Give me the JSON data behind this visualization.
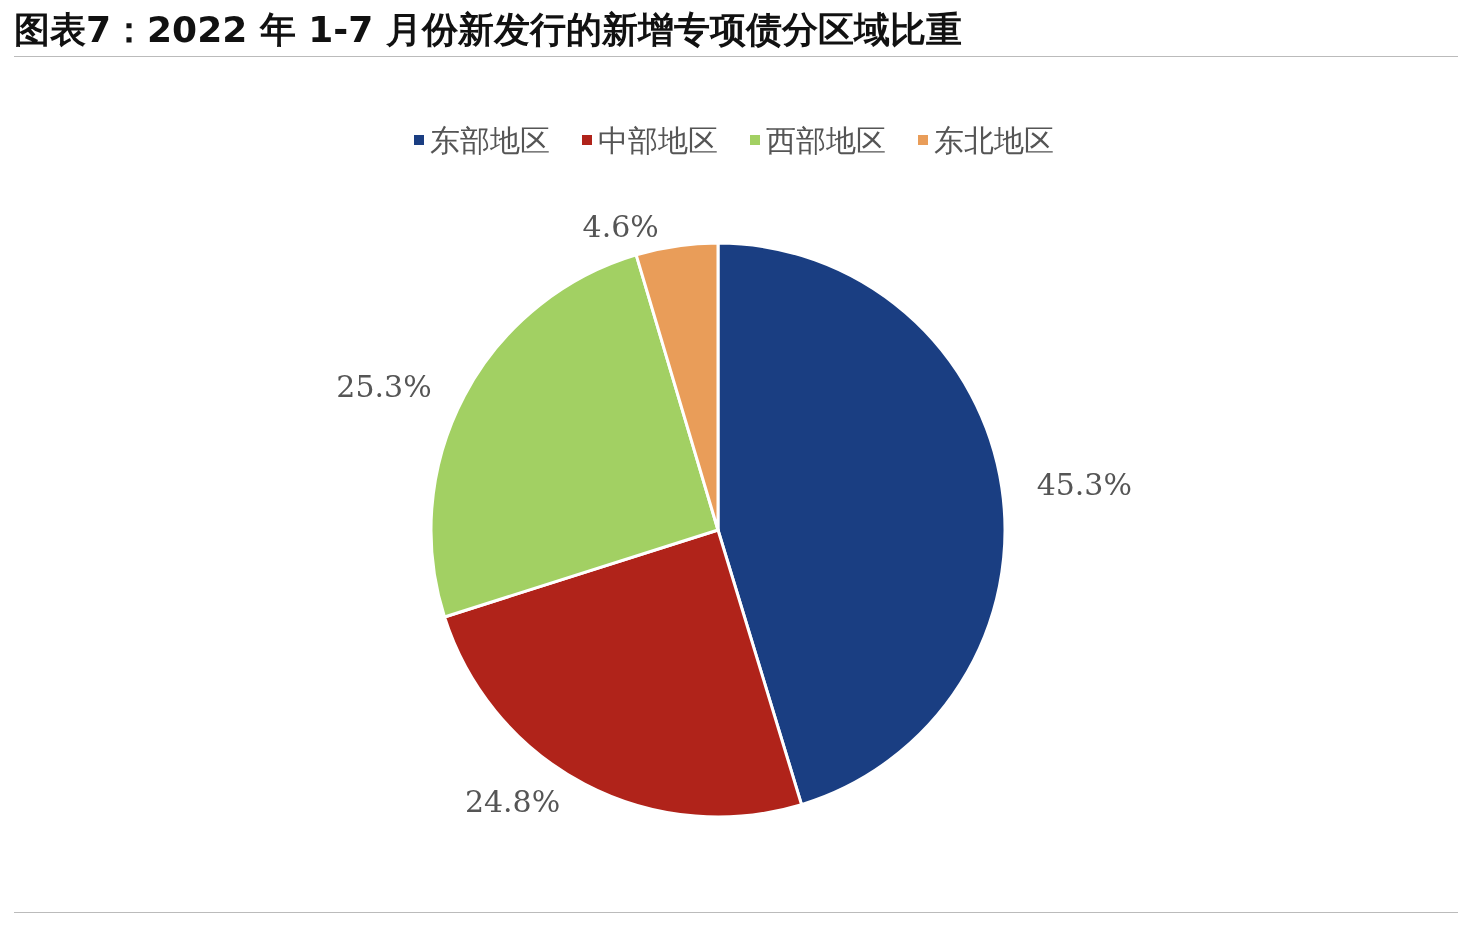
{
  "chart_data": {
    "type": "pie",
    "title": "图表7：2022 年 1-7 月份新发行的新增专项债分区域比重",
    "categories": [
      "东部地区",
      "中部地区",
      "西部地区",
      "东北地区"
    ],
    "values": [
      45.3,
      24.8,
      25.3,
      4.6
    ],
    "colors": [
      "#1a3e82",
      "#b0231a",
      "#a2d063",
      "#e99d59"
    ],
    "value_labels": [
      "45.3%",
      "24.8%",
      "25.3%",
      "4.6%"
    ],
    "legend": "top"
  }
}
